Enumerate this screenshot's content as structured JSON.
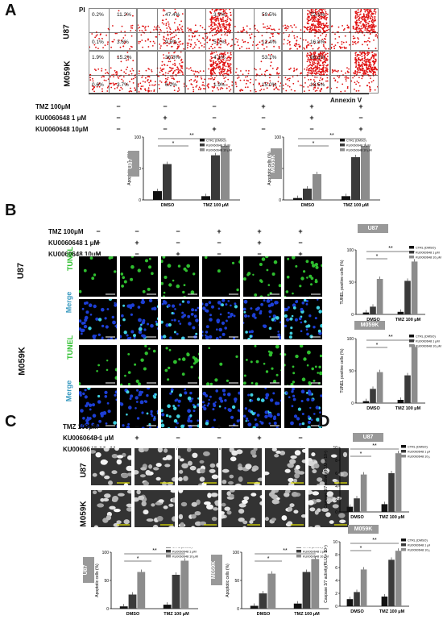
{
  "panels": {
    "A": "A",
    "B": "B",
    "C": "C",
    "D": "D"
  },
  "axes_a": {
    "pi": "PI",
    "annexin": "Annexin V"
  },
  "cells": {
    "u87": "U87",
    "m059k": "M059K"
  },
  "conditions": {
    "labels": [
      "TMZ 100μM",
      "KU0060648  1 μM",
      "KU0060648 10μM"
    ],
    "signs": [
      [
        "−",
        "−",
        "−",
        "+",
        "+",
        "+"
      ],
      [
        "−",
        "+",
        "−",
        "−",
        "+",
        "−"
      ],
      [
        "−",
        "−",
        "+",
        "−",
        "−",
        "+"
      ]
    ]
  },
  "facs": {
    "u87": [
      {
        "ul": "0.2%",
        "ur": "11.2%",
        "ll": "0.1%",
        "lr": "3.6%"
      },
      {
        "ul": "",
        "ur": "47.4%",
        "ll": "",
        "lr": "9.5%"
      },
      {
        "ul": "",
        "ur": "3.7%",
        "ll": "",
        "lr": "5.2%"
      },
      {
        "ul": "",
        "ur": "59.5%",
        "ll": "",
        "lr": "12.4%"
      },
      {
        "ul": "",
        "ur": "72.1%",
        "ll": "",
        "lr": "16.8%"
      },
      {
        "ul": "",
        "ur": "",
        "ll": "",
        "lr": ""
      }
    ],
    "m059k": [
      {
        "ul": "1.9%",
        "ur": "15.2%",
        "ll": "0.6%",
        "lr": "3.7%"
      },
      {
        "ul": "",
        "ur": "36.8%",
        "ll": "",
        "lr": "6.2%"
      },
      {
        "ul": "",
        "ur": "4.1%",
        "ll": "",
        "lr": "1.9%"
      },
      {
        "ul": "",
        "ur": "53.1%",
        "ll": "",
        "lr": "15.0%"
      },
      {
        "ul": "",
        "ur": "68.3%",
        "ll": "",
        "lr": "18.5%"
      },
      {
        "ul": "",
        "ur": "",
        "ll": "",
        "lr": ""
      }
    ]
  },
  "stains": {
    "tunel": "TUNEL",
    "merge": "Merge"
  },
  "legend": [
    "CTRL (DMSO)",
    "KU0060648  1 μM",
    "KU0060648 10 μM"
  ],
  "colors": {
    "ctrl": "#111111",
    "ku1": "#3a3a3a",
    "ku10": "#8c8c8c",
    "tunel": "#2fbf2f",
    "merge": "#1d3fd6"
  },
  "sig": {
    "two": "**",
    "one": "*"
  },
  "chart_data": [
    {
      "type": "bar",
      "panel": "A",
      "cell_line": "U87",
      "categories": [
        "DMSO",
        "TMZ 100 μM"
      ],
      "ylabel": "Apoptotic cells (%)",
      "ylim": [
        0,
        100
      ],
      "yticks": [
        "0",
        "50",
        "100"
      ],
      "series": [
        {
          "name": "CTRL (DMSO)",
          "values": [
            14,
            6
          ]
        },
        {
          "name": "KU0060648  1 μM",
          "values": [
            57,
            71
          ]
        },
        {
          "name": "KU0060648 10 μM",
          "values": [
            0,
            86
          ]
        }
      ]
    },
    {
      "type": "bar",
      "panel": "A",
      "cell_line": "M059K",
      "categories": [
        "DMSO",
        "TMZ 100 μM"
      ],
      "ylabel": "Apoptotic cells (%)",
      "ylim": [
        0,
        100
      ],
      "yticks": [
        "0",
        "50",
        "100"
      ],
      "series": [
        {
          "name": "CTRL (DMSO)",
          "values": [
            3,
            6
          ]
        },
        {
          "name": "KU0060648  1 μM",
          "values": [
            18,
            68
          ]
        },
        {
          "name": "KU0060648 10 μM",
          "values": [
            41,
            86
          ]
        }
      ]
    },
    {
      "type": "bar",
      "panel": "B",
      "cell_line": "U87",
      "categories": [
        "DMSO",
        "TMZ 100 μM"
      ],
      "ylabel": "TUNEL positive cells (%)",
      "ylim": [
        0,
        100
      ],
      "yticks": [
        "0",
        "50",
        "100"
      ],
      "series": [
        {
          "name": "CTRL (DMSO)",
          "values": [
            3,
            4
          ]
        },
        {
          "name": "KU0060648  1 μM",
          "values": [
            12,
            52
          ]
        },
        {
          "name": "KU0060648 10 μM",
          "values": [
            55,
            82
          ]
        }
      ]
    },
    {
      "type": "bar",
      "panel": "B",
      "cell_line": "M059K",
      "categories": [
        "DMSO",
        "TMZ 100 μM"
      ],
      "ylabel": "TUNEL positive cells (%)",
      "ylim": [
        0,
        100
      ],
      "yticks": [
        "0",
        "50",
        "100"
      ],
      "series": [
        {
          "name": "CTRL (DMSO)",
          "values": [
            3,
            5
          ]
        },
        {
          "name": "KU0060648  1 μM",
          "values": [
            22,
            43
          ]
        },
        {
          "name": "KU0060648 10 μM",
          "values": [
            48,
            87
          ]
        }
      ]
    },
    {
      "type": "bar",
      "panel": "C",
      "cell_line": "U87",
      "categories": [
        "DMSO",
        "TMZ 100 μM"
      ],
      "ylabel": "Apoptotic cells (%)",
      "ylim": [
        0,
        100
      ],
      "yticks": [
        "0",
        "50",
        "100"
      ],
      "series": [
        {
          "name": "CTRL (DMSO)",
          "values": [
            4,
            7
          ]
        },
        {
          "name": "KU0060648  1 μM",
          "values": [
            25,
            60
          ]
        },
        {
          "name": "KU0060648 10 μM",
          "values": [
            65,
            85
          ]
        }
      ]
    },
    {
      "type": "bar",
      "panel": "C",
      "cell_line": "M059K",
      "categories": [
        "DMSO",
        "TMZ 100 μM"
      ],
      "ylabel": "Apoptotic cells (%)",
      "ylim": [
        0,
        100
      ],
      "yticks": [
        "0",
        "50",
        "100"
      ],
      "series": [
        {
          "name": "CTRL (DMSO)",
          "values": [
            5,
            9
          ]
        },
        {
          "name": "KU0060648  1 μM",
          "values": [
            27,
            65
          ]
        },
        {
          "name": "KU0060648 10 μM",
          "values": [
            62,
            88
          ]
        }
      ]
    },
    {
      "type": "bar",
      "panel": "D",
      "cell_line": "U87",
      "categories": [
        "DMSO",
        "TMZ 100 μM"
      ],
      "ylabel": "Caspase 3/7 activity(RLU × 10⁴)",
      "ylim": [
        0,
        10
      ],
      "yticks": [
        "0",
        "2",
        "4",
        "6",
        "8",
        "10"
      ],
      "series": [
        {
          "name": "CTRL (DMSO)",
          "values": [
            0.8,
            1.2
          ]
        },
        {
          "name": "KU0060648  1 μM",
          "values": [
            2.1,
            6.0
          ]
        },
        {
          "name": "KU0060648 10 μM",
          "values": [
            5.8,
            9.1
          ]
        }
      ]
    },
    {
      "type": "bar",
      "panel": "D",
      "cell_line": "M059K",
      "categories": [
        "DMSO",
        "TMZ 100 μM"
      ],
      "ylabel": "Caspase 3/7 activity(RLU × 10⁴)",
      "ylim": [
        0,
        10
      ],
      "yticks": [
        "0",
        "2",
        "4",
        "6",
        "8",
        "10"
      ],
      "series": [
        {
          "name": "CTRL (DMSO)",
          "values": [
            1.1,
            1.5
          ]
        },
        {
          "name": "KU0060648  1 μM",
          "values": [
            2.2,
            7.2
          ]
        },
        {
          "name": "KU0060648 10 μM",
          "values": [
            5.7,
            8.6
          ]
        }
      ]
    }
  ]
}
